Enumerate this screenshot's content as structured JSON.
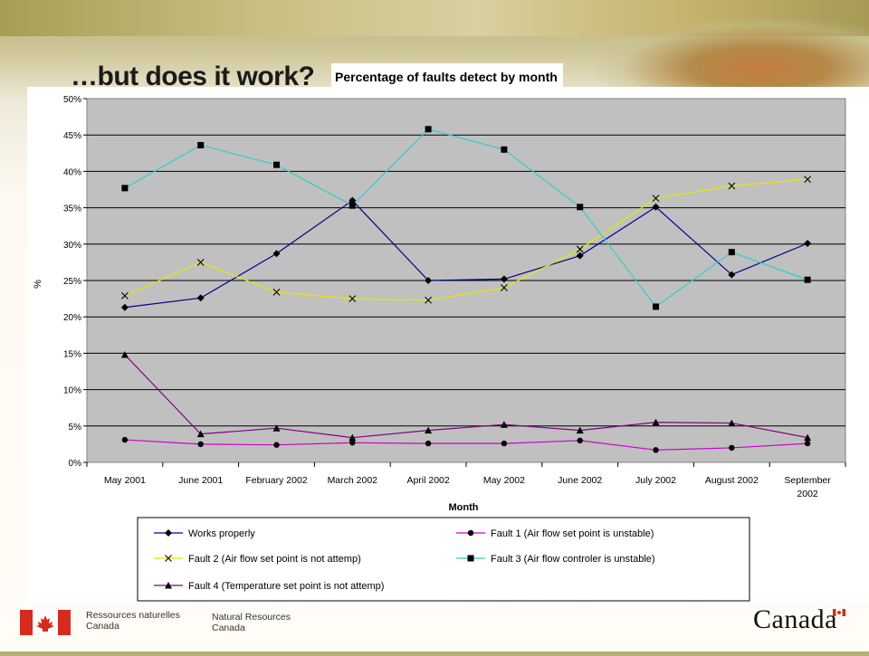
{
  "slide": {
    "title": "…but does it work?"
  },
  "footer": {
    "org_fr_line1": "Ressources naturelles",
    "org_fr_line2": "Canada",
    "org_en_line1": "Natural Resources",
    "org_en_line2": "Canada",
    "wordmark": "Canada"
  },
  "chart_data": {
    "type": "line",
    "title": "Percentage of faults detect by month",
    "xlabel": "Month",
    "ylabel": "%",
    "ylim": [
      0,
      0.5
    ],
    "y_ticks": [
      "0%",
      "5%",
      "10%",
      "15%",
      "20%",
      "25%",
      "30%",
      "35%",
      "40%",
      "45%",
      "50%"
    ],
    "grid": true,
    "legend_position": "bottom",
    "categories": [
      "May 2001",
      "June 2001",
      "February 2002",
      "March 2002",
      "April 2002",
      "May 2002",
      "June 2002",
      "July 2002",
      "August 2002",
      "September 2002"
    ],
    "series": [
      {
        "name": "Works properly",
        "color": "#00008b",
        "marker": "diamond",
        "values": [
          0.213,
          0.226,
          0.287,
          0.36,
          0.25,
          0.252,
          0.284,
          0.351,
          0.258,
          0.301
        ]
      },
      {
        "name": "Fault 1 (Air flow set point is unstable)",
        "color": "#cc00cc",
        "marker": "circle",
        "values": [
          0.031,
          0.025,
          0.024,
          0.027,
          0.026,
          0.026,
          0.03,
          0.017,
          0.02,
          0.026
        ]
      },
      {
        "name": "Fault 2 (Air flow set point is not attemp)",
        "color": "#e8e800",
        "marker": "x",
        "values": [
          0.229,
          0.275,
          0.234,
          0.225,
          0.223,
          0.24,
          0.293,
          0.363,
          0.38,
          0.389
        ]
      },
      {
        "name": "Fault 3 (Air flow controler is unstable)",
        "color": "#33cccc",
        "marker": "square",
        "values": [
          0.377,
          0.436,
          0.409,
          0.353,
          0.458,
          0.43,
          0.351,
          0.214,
          0.289,
          0.251
        ]
      },
      {
        "name": "Fault 4 (Temperature set point is not attemp)",
        "color": "#800080",
        "marker": "triangle",
        "values": [
          0.148,
          0.039,
          0.047,
          0.034,
          0.044,
          0.052,
          0.044,
          0.055,
          0.054,
          0.034
        ]
      }
    ]
  }
}
